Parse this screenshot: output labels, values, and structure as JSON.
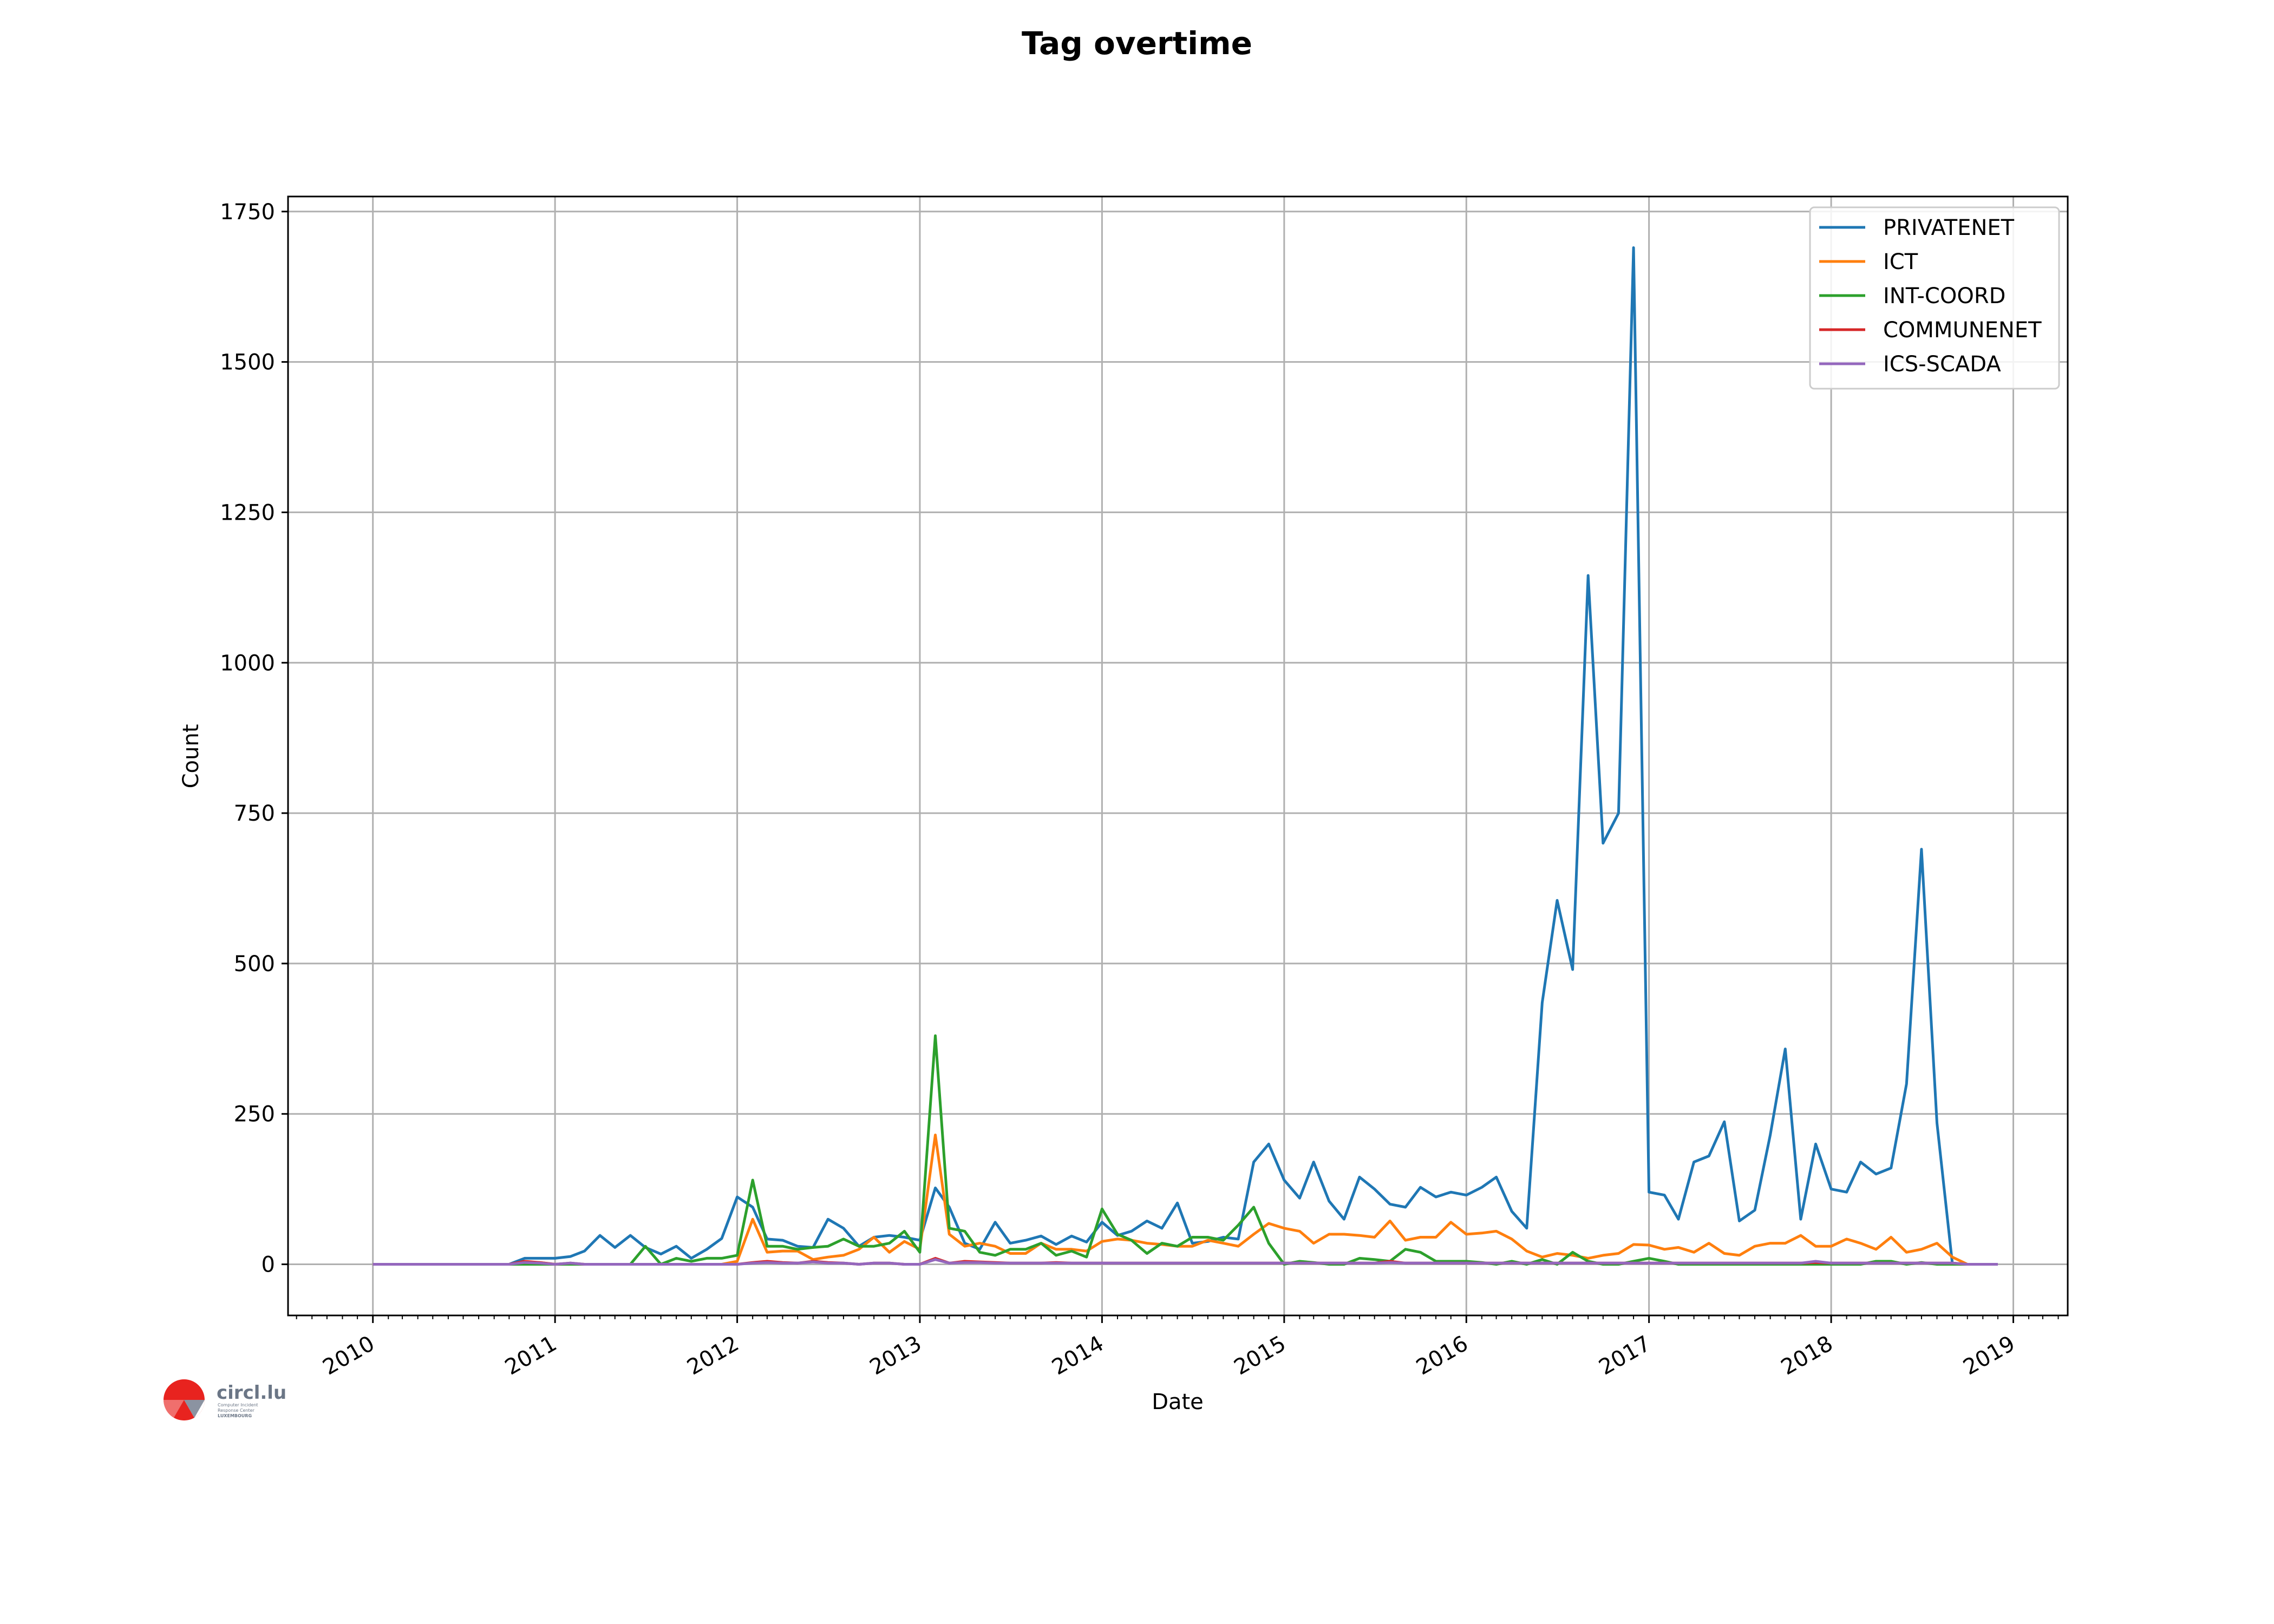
{
  "chart_data": {
    "type": "line",
    "title": "Tag overtime",
    "xlabel": "Date",
    "ylabel": "Count",
    "xlim": [
      "2009-07-15",
      "2019-04-20"
    ],
    "ylim": [
      -85,
      1775
    ],
    "x_ticks": [
      "2010",
      "2011",
      "2012",
      "2013",
      "2014",
      "2015",
      "2016",
      "2017",
      "2018",
      "2019"
    ],
    "y_ticks": [
      0,
      250,
      500,
      750,
      1000,
      1250,
      1500,
      1750
    ],
    "grid": true,
    "legend_position": "top-right",
    "x_dates": [
      "2010-01",
      "2010-02",
      "2010-03",
      "2010-04",
      "2010-05",
      "2010-06",
      "2010-07",
      "2010-08",
      "2010-09",
      "2010-10",
      "2010-11",
      "2010-12",
      "2011-01",
      "2011-02",
      "2011-03",
      "2011-04",
      "2011-05",
      "2011-06",
      "2011-07",
      "2011-08",
      "2011-09",
      "2011-10",
      "2011-11",
      "2011-12",
      "2012-01",
      "2012-02",
      "2012-03",
      "2012-04",
      "2012-05",
      "2012-06",
      "2012-07",
      "2012-08",
      "2012-09",
      "2012-10",
      "2012-11",
      "2012-12",
      "2013-01",
      "2013-02",
      "2013-03",
      "2013-04",
      "2013-05",
      "2013-06",
      "2013-07",
      "2013-08",
      "2013-09",
      "2013-10",
      "2013-11",
      "2013-12",
      "2014-01",
      "2014-02",
      "2014-03",
      "2014-04",
      "2014-05",
      "2014-06",
      "2014-07",
      "2014-08",
      "2014-09",
      "2014-10",
      "2014-11",
      "2014-12",
      "2015-01",
      "2015-02",
      "2015-03",
      "2015-04",
      "2015-05",
      "2015-06",
      "2015-07",
      "2015-08",
      "2015-09",
      "2015-10",
      "2015-11",
      "2015-12",
      "2016-01",
      "2016-02",
      "2016-03",
      "2016-04",
      "2016-05",
      "2016-06",
      "2016-07",
      "2016-08",
      "2016-09",
      "2016-10",
      "2016-11",
      "2016-12",
      "2017-01",
      "2017-02",
      "2017-03",
      "2017-04",
      "2017-05",
      "2017-06",
      "2017-07",
      "2017-08",
      "2017-09",
      "2017-10",
      "2017-11",
      "2017-12",
      "2018-01",
      "2018-02",
      "2018-03",
      "2018-04",
      "2018-05",
      "2018-06",
      "2018-07",
      "2018-08",
      "2018-09",
      "2018-10",
      "2018-11",
      "2018-12"
    ],
    "series": [
      {
        "name": "PRIVATENET",
        "color": "#1f77b4",
        "values": [
          0,
          0,
          0,
          0,
          0,
          0,
          0,
          0,
          0,
          0,
          10,
          10,
          10,
          13,
          22,
          48,
          28,
          48,
          28,
          17,
          30,
          10,
          25,
          43,
          112,
          95,
          42,
          40,
          30,
          28,
          75,
          60,
          30,
          45,
          48,
          45,
          40,
          127,
          95,
          35,
          25,
          70,
          35,
          40,
          47,
          33,
          47,
          37,
          70,
          48,
          55,
          72,
          60,
          102,
          35,
          38,
          45,
          42,
          170,
          200,
          140,
          110,
          170,
          105,
          75,
          145,
          125,
          100,
          95,
          128,
          112,
          120,
          115,
          128,
          145,
          88,
          60,
          435,
          605,
          490,
          1145,
          700,
          750,
          1690,
          120,
          115,
          75,
          170,
          180,
          237,
          72,
          90,
          215,
          358,
          75,
          200,
          125,
          120,
          170,
          150,
          160,
          300,
          690,
          235,
          0,
          0,
          0,
          0
        ]
      },
      {
        "name": "ICT",
        "color": "#ff7f0e",
        "values": [
          0,
          0,
          0,
          0,
          0,
          0,
          0,
          0,
          0,
          0,
          3,
          3,
          0,
          0,
          0,
          0,
          0,
          0,
          0,
          0,
          0,
          0,
          0,
          0,
          5,
          75,
          20,
          22,
          22,
          8,
          12,
          15,
          25,
          45,
          20,
          38,
          25,
          215,
          50,
          30,
          35,
          30,
          18,
          18,
          35,
          25,
          25,
          22,
          38,
          42,
          40,
          35,
          33,
          30,
          30,
          40,
          35,
          30,
          50,
          68,
          60,
          55,
          35,
          50,
          50,
          48,
          45,
          72,
          40,
          45,
          45,
          70,
          50,
          52,
          55,
          42,
          22,
          12,
          18,
          15,
          10,
          15,
          18,
          33,
          32,
          25,
          28,
          20,
          35,
          18,
          15,
          30,
          35,
          35,
          48,
          30,
          30,
          42,
          35,
          25,
          45,
          20,
          25,
          35,
          12,
          0,
          0,
          0
        ]
      },
      {
        "name": "INT-COORD",
        "color": "#2ca02c",
        "values": [
          0,
          0,
          0,
          0,
          0,
          0,
          0,
          0,
          0,
          0,
          0,
          0,
          0,
          0,
          0,
          0,
          0,
          0,
          30,
          0,
          10,
          5,
          10,
          10,
          15,
          140,
          30,
          30,
          25,
          28,
          30,
          42,
          30,
          30,
          35,
          55,
          20,
          380,
          60,
          55,
          20,
          15,
          25,
          25,
          35,
          15,
          22,
          12,
          92,
          50,
          40,
          18,
          35,
          30,
          45,
          45,
          40,
          65,
          95,
          35,
          0,
          5,
          3,
          0,
          0,
          10,
          8,
          5,
          25,
          20,
          5,
          5,
          5,
          3,
          0,
          5,
          0,
          8,
          0,
          20,
          5,
          0,
          0,
          5,
          10,
          5,
          0,
          0,
          0,
          0,
          0,
          0,
          0,
          0,
          0,
          0,
          0,
          0,
          0,
          5,
          5,
          0,
          3,
          0,
          0,
          0,
          0,
          0
        ]
      },
      {
        "name": "COMMUNENET",
        "color": "#d62728",
        "values": [
          0,
          0,
          0,
          0,
          0,
          0,
          0,
          0,
          0,
          0,
          5,
          3,
          0,
          2,
          0,
          0,
          0,
          0,
          0,
          0,
          0,
          0,
          0,
          0,
          0,
          3,
          5,
          3,
          2,
          5,
          3,
          2,
          0,
          2,
          2,
          0,
          0,
          10,
          2,
          5,
          4,
          3,
          2,
          2,
          2,
          3,
          2,
          2,
          2,
          2,
          2,
          2,
          2,
          2,
          2,
          2,
          2,
          2,
          2,
          2,
          2,
          2,
          2,
          2,
          2,
          2,
          2,
          5,
          2,
          2,
          2,
          2,
          2,
          2,
          2,
          2,
          2,
          2,
          2,
          2,
          2,
          2,
          2,
          2,
          2,
          2,
          2,
          2,
          2,
          2,
          2,
          2,
          2,
          2,
          2,
          3,
          2,
          2,
          2,
          2,
          2,
          2,
          2,
          2,
          2,
          0,
          0,
          0
        ]
      },
      {
        "name": "ICS-SCADA",
        "color": "#9467bd",
        "values": [
          0,
          0,
          0,
          0,
          0,
          0,
          0,
          0,
          0,
          0,
          3,
          2,
          0,
          2,
          0,
          0,
          0,
          0,
          0,
          0,
          0,
          0,
          0,
          0,
          0,
          2,
          3,
          2,
          2,
          4,
          2,
          2,
          0,
          2,
          2,
          0,
          0,
          8,
          2,
          3,
          3,
          2,
          2,
          2,
          2,
          2,
          2,
          2,
          2,
          2,
          2,
          2,
          2,
          2,
          2,
          2,
          2,
          2,
          2,
          2,
          2,
          2,
          2,
          2,
          2,
          2,
          2,
          3,
          2,
          2,
          2,
          2,
          2,
          2,
          2,
          2,
          2,
          2,
          2,
          2,
          2,
          2,
          2,
          2,
          2,
          2,
          2,
          2,
          2,
          2,
          2,
          2,
          2,
          2,
          2,
          5,
          2,
          2,
          2,
          2,
          2,
          2,
          2,
          2,
          2,
          0,
          0,
          0
        ]
      }
    ]
  },
  "logo": {
    "name": "circl.lu",
    "subtitle_lines": [
      "Computer Incident",
      "Response Center",
      "LUXEMBOURG"
    ]
  }
}
